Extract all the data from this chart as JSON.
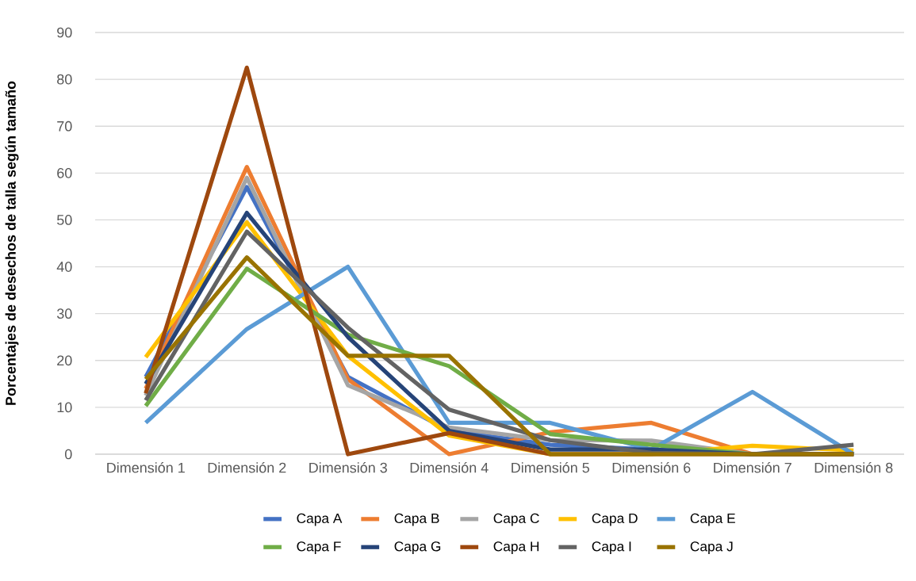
{
  "chart_data": {
    "type": "line",
    "ylabel": "Porcentajes de desechos de talla  según tamaño",
    "categories": [
      "Dimensión 1",
      "Dimensión 2",
      "Dimensión 3",
      "Dimensión 4",
      "Dimensión 5",
      "Dimensión 6",
      "Dimensión 7",
      "Dimensión 8"
    ],
    "ylim": [
      0,
      90
    ],
    "yticks": [
      0,
      10,
      20,
      30,
      40,
      50,
      60,
      70,
      80,
      90
    ],
    "grid": "y",
    "legend": "bottom",
    "series": [
      {
        "name": "Capa A",
        "color": "#4472c4",
        "values": [
          16.5,
          57,
          16.5,
          5,
          2,
          1,
          0,
          0
        ]
      },
      {
        "name": "Capa B",
        "color": "#ed7d31",
        "values": [
          14,
          61.3,
          16,
          0,
          4.7,
          6.7,
          0,
          0
        ]
      },
      {
        "name": "Capa C",
        "color": "#a5a5a5",
        "values": [
          12.5,
          59,
          14.7,
          5.7,
          3,
          2.9,
          0,
          0
        ]
      },
      {
        "name": "Capa D",
        "color": "#ffc000",
        "values": [
          20.7,
          49.5,
          21,
          4,
          0,
          0,
          1.8,
          0.8
        ]
      },
      {
        "name": "Capa E",
        "color": "#5b9bd5",
        "values": [
          6.7,
          26.7,
          40,
          6.7,
          6.7,
          1,
          13.3,
          0
        ]
      },
      {
        "name": "Capa F",
        "color": "#70ad47",
        "values": [
          10.3,
          39.6,
          25.5,
          18.8,
          4.3,
          2,
          0,
          0
        ]
      },
      {
        "name": "Capa G",
        "color": "#264478",
        "values": [
          15,
          51.5,
          25,
          5,
          1,
          1,
          0,
          0
        ]
      },
      {
        "name": "Capa H",
        "color": "#9e480e",
        "values": [
          13,
          82.5,
          0,
          4.5,
          0,
          0,
          0,
          0
        ]
      },
      {
        "name": "Capa I",
        "color": "#636363",
        "values": [
          11.5,
          47.5,
          27,
          9.5,
          3,
          0.3,
          0,
          2
        ]
      },
      {
        "name": "Capa J",
        "color": "#997300",
        "values": [
          16,
          42,
          21,
          21,
          0,
          0,
          0,
          0
        ]
      }
    ]
  }
}
